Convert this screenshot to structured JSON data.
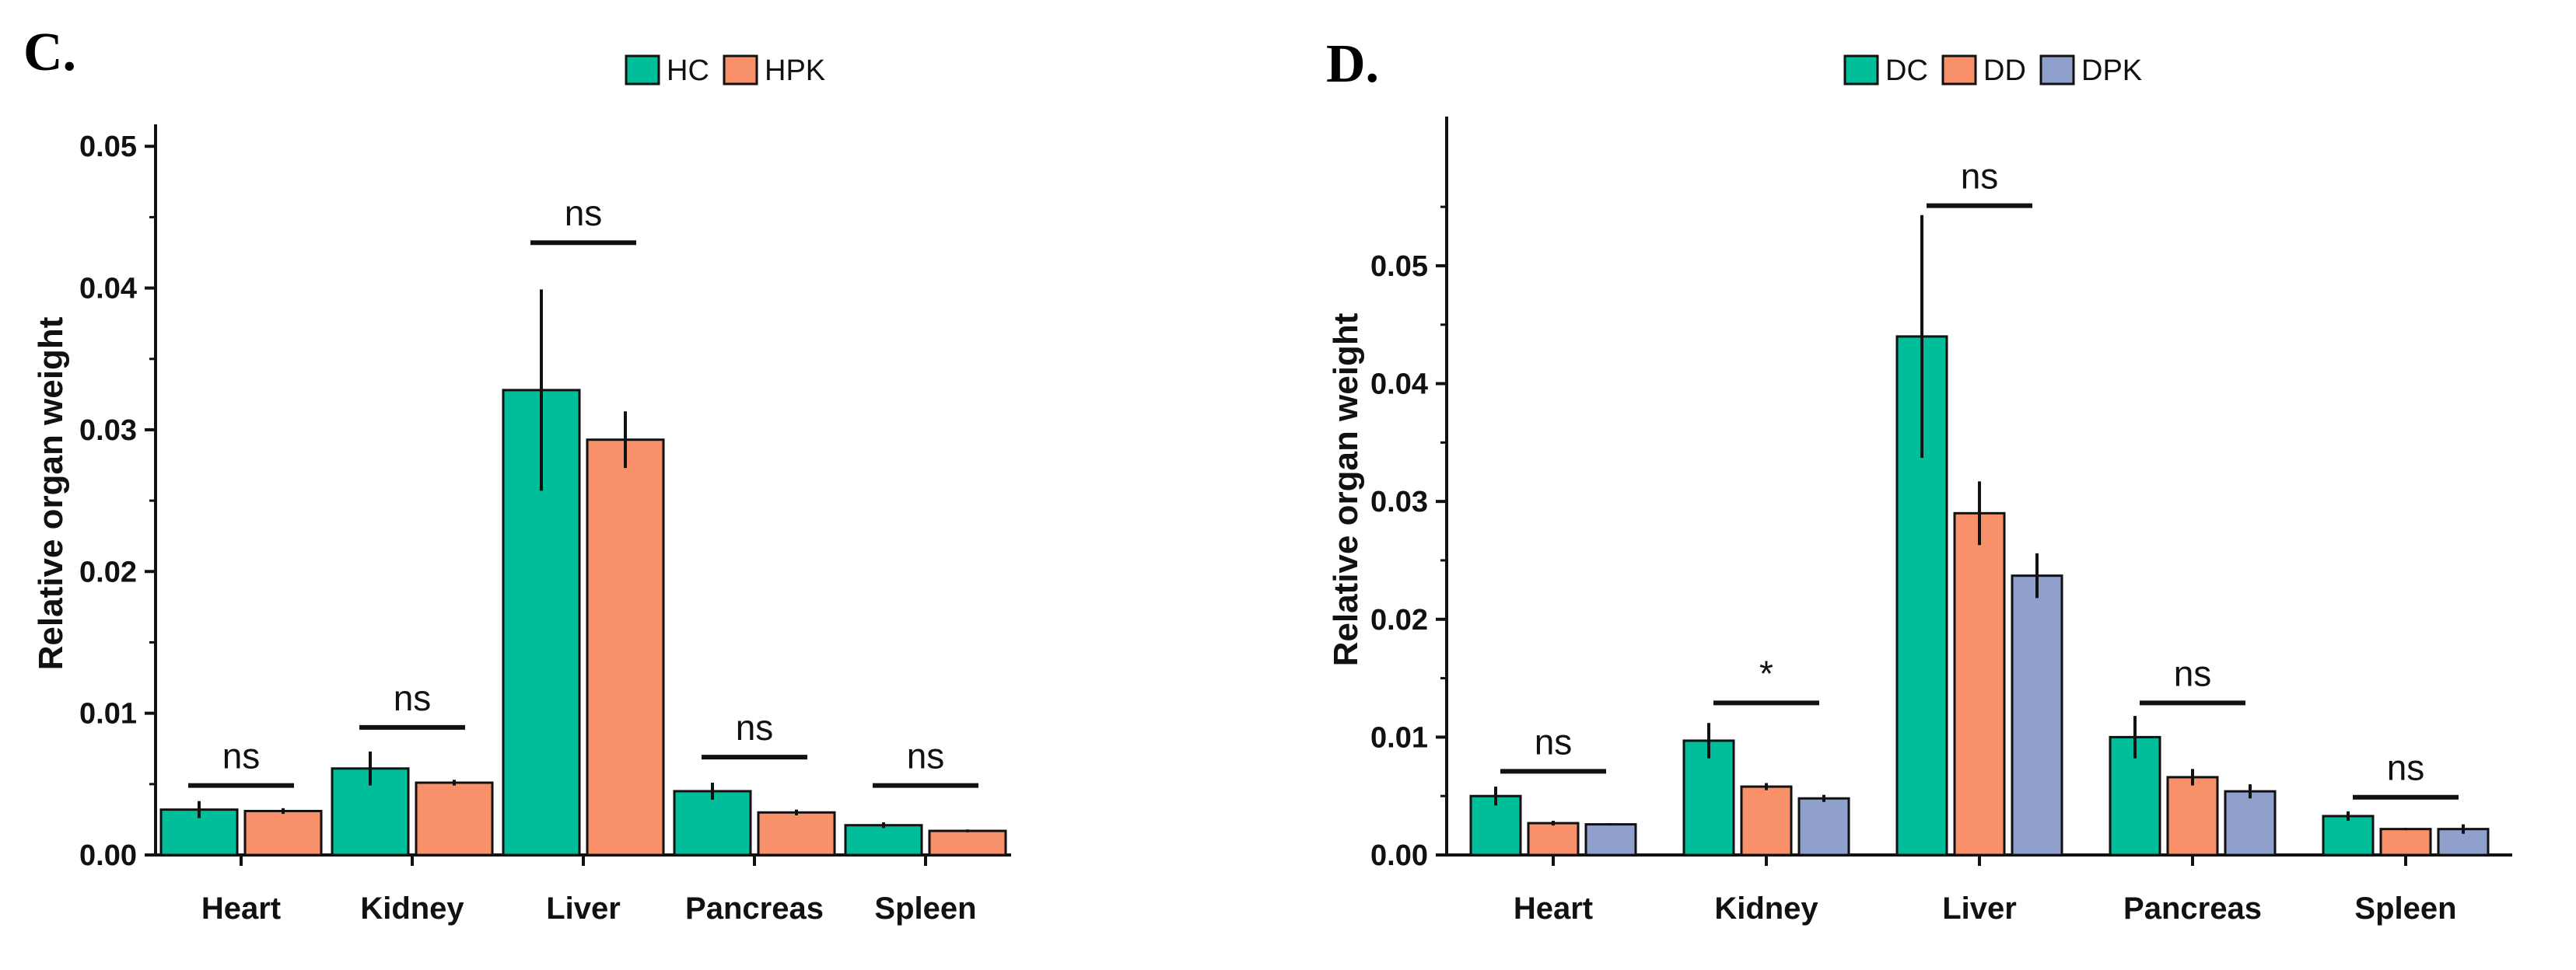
{
  "colors": {
    "HC": "#00BE9A",
    "HPK": "#F8906A",
    "DC": "#00BE9A",
    "DD": "#F8906A",
    "DPK": "#8EA0CB"
  },
  "chart_data": [
    {
      "panel": "C.",
      "type": "bar",
      "ylabel": "Relative organ weight",
      "ylim": [
        0,
        0.051
      ],
      "yticks": [
        "0.00",
        "0.01",
        "0.02",
        "0.03",
        "0.04",
        "0.05"
      ],
      "categories": [
        "Heart",
        "Kidney",
        "Liver",
        "Pancreas",
        "Spleen"
      ],
      "legend_position": "top-center",
      "series": [
        {
          "name": "HC",
          "color": "#00BE9A",
          "values": [
            0.0032,
            0.0061,
            0.0328,
            0.0045,
            0.0021
          ],
          "errors": [
            0.0006,
            0.0012,
            0.0071,
            0.0006,
            0.0002
          ]
        },
        {
          "name": "HPK",
          "color": "#F8906A",
          "values": [
            0.0031,
            0.0051,
            0.0293,
            0.003,
            0.0017
          ],
          "errors": [
            0.0002,
            0.0002,
            0.002,
            0.0002,
            0.0001
          ]
        }
      ],
      "significance": [
        {
          "label": "ns",
          "category": 0,
          "level": 0.0049
        },
        {
          "label": "ns",
          "category": 1,
          "level": 0.009
        },
        {
          "label": "ns",
          "category": 2,
          "level": 0.0432
        },
        {
          "label": "ns",
          "category": 3,
          "level": 0.0069
        },
        {
          "label": "ns",
          "category": 4,
          "level": 0.0049
        }
      ]
    },
    {
      "panel": "D.",
      "type": "bar",
      "ylabel": "Relative organ weight",
      "ylim": [
        0,
        0.062
      ],
      "yticks": [
        "0.00",
        "0.01",
        "0.02",
        "0.03",
        "0.04",
        "0.05"
      ],
      "categories": [
        "Heart",
        "Kidney",
        "Liver",
        "Pancreas",
        "Spleen"
      ],
      "legend_position": "top-center",
      "series": [
        {
          "name": "DC",
          "color": "#00BE9A",
          "values": [
            0.005,
            0.0097,
            0.044,
            0.01,
            0.0033
          ],
          "errors": [
            0.0008,
            0.0015,
            0.0103,
            0.0018,
            0.0004
          ]
        },
        {
          "name": "DD",
          "color": "#F8906A",
          "values": [
            0.0027,
            0.0058,
            0.029,
            0.0066,
            0.0022
          ],
          "errors": [
            0.0002,
            0.0003,
            0.0027,
            0.0007,
            0.0001
          ]
        },
        {
          "name": "DPK",
          "color": "#8EA0CB",
          "values": [
            0.0026,
            0.0048,
            0.0237,
            0.0054,
            0.0022
          ],
          "errors": [
            0.0001,
            0.0003,
            0.0019,
            0.0006,
            0.0004
          ]
        }
      ],
      "significance": [
        {
          "label": "ns",
          "category": 0,
          "level": 0.0071
        },
        {
          "label": "*",
          "category": 1,
          "level": 0.0129
        },
        {
          "label": "ns",
          "category": 2,
          "level": 0.0551
        },
        {
          "label": "ns",
          "category": 3,
          "level": 0.0129
        },
        {
          "label": "ns",
          "category": 4,
          "level": 0.0049
        }
      ]
    }
  ]
}
